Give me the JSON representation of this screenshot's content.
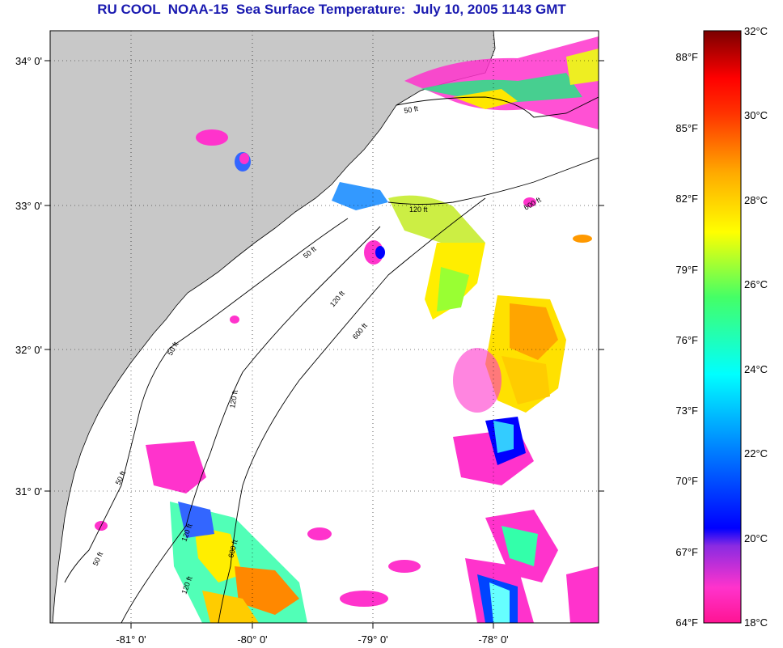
{
  "title": "RU COOL  NOAA-15  Sea Surface Temperature:  July 10, 2005 1143 GMT",
  "lat_labels": [
    "34° 0'",
    "33° 0'",
    "32° 0'",
    "31° 0'"
  ],
  "lon_labels": [
    "-81° 0'",
    "-80° 0'",
    "-79° 0'",
    "-78° 0'"
  ],
  "contour_labels": [
    "50 ft",
    "50 ft",
    "50 ft",
    "50 ft",
    "50 ft",
    "120 ft",
    "120 ft",
    "120 ft",
    "120 ft",
    "120 ft",
    "600 ft",
    "600 ft",
    "600 ft"
  ],
  "colorbar": {
    "fahrenheit_labels": [
      "88°F",
      "85°F",
      "82°F",
      "79°F",
      "76°F",
      "73°F",
      "70°F",
      "67°F",
      "64°F"
    ],
    "celsius_labels": [
      "32°C",
      "30°C",
      "28°C",
      "26°C",
      "24°C",
      "22°C",
      "20°C",
      "18°C"
    ],
    "range_celsius": [
      18,
      32
    ],
    "colors": [
      "#ff1493",
      "#8a2be2",
      "#0000ff",
      "#00aaff",
      "#00ffff",
      "#33ff99",
      "#ffff00",
      "#ffa500",
      "#ff4500",
      "#ff0000",
      "#8b0000"
    ]
  },
  "colors": {
    "title": "#1a1ab0",
    "land": "#c8c8c8",
    "ocean_cloud": "#ffffff"
  }
}
